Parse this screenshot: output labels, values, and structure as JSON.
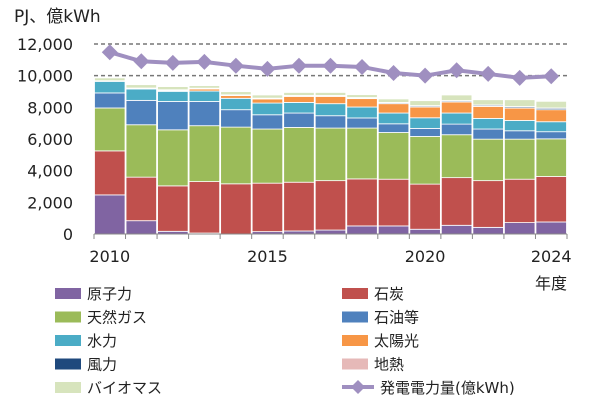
{
  "chart_data": {
    "type": "bar",
    "stacked": true,
    "ylabel": "PJ、億kWh",
    "xlabel": "年度",
    "ylim": [
      0,
      12000
    ],
    "yticks": [
      "0",
      "2,000",
      "4,000",
      "6,000",
      "8,000",
      "10,000",
      "12,000"
    ],
    "ytick_values": [
      0,
      2000,
      4000,
      6000,
      8000,
      10000,
      12000
    ],
    "gridlines": [
      10000,
      12000
    ],
    "x": [
      2010,
      2011,
      2012,
      2013,
      2014,
      2015,
      2016,
      2017,
      2018,
      2019,
      2020,
      2021,
      2022,
      2023,
      2024
    ],
    "xtick_labels": [
      "2010",
      "2015",
      "2020",
      "2024"
    ],
    "legend_placement": "bottom",
    "series": [
      {
        "name": "原子力",
        "color": "#8064a2",
        "values": [
          2470,
          840,
          170,
          60,
          0,
          150,
          190,
          250,
          510,
          510,
          300,
          550,
          420,
          720,
          760
        ]
      },
      {
        "name": "石炭",
        "color": "#c0504d",
        "values": [
          2780,
          2750,
          2870,
          3250,
          3170,
          3060,
          3080,
          3120,
          2970,
          2950,
          2850,
          3010,
          2950,
          2740,
          2870
        ]
      },
      {
        "name": "天然ガス",
        "color": "#9bbb59",
        "values": [
          2710,
          3310,
          3540,
          3530,
          3580,
          3420,
          3460,
          3320,
          3210,
          2950,
          3010,
          2710,
          2620,
          2530,
          2380
        ]
      },
      {
        "name": "石油等",
        "color": "#4f81bd",
        "values": [
          950,
          1540,
          1790,
          1530,
          1100,
          900,
          910,
          780,
          640,
          550,
          510,
          670,
          640,
          530,
          450
        ]
      },
      {
        "name": "水力",
        "color": "#4bacc6",
        "values": [
          730,
          720,
          640,
          660,
          720,
          740,
          670,
          760,
          690,
          680,
          670,
          700,
          670,
          650,
          630
        ]
      },
      {
        "name": "太陽光",
        "color": "#f79646",
        "values": [
          0,
          10,
          50,
          130,
          170,
          260,
          380,
          460,
          530,
          590,
          680,
          700,
          760,
          780,
          760
        ]
      },
      {
        "name": "風力",
        "color": "#1f497d",
        "values": [
          20,
          30,
          30,
          30,
          30,
          30,
          40,
          40,
          50,
          60,
          70,
          70,
          70,
          80,
          90
        ]
      },
      {
        "name": "地熱",
        "color": "#e6b9b8",
        "values": [
          20,
          20,
          20,
          20,
          20,
          20,
          20,
          20,
          20,
          20,
          20,
          20,
          20,
          20,
          20
        ]
      },
      {
        "name": "バイオマス",
        "color": "#d7e4bd",
        "values": [
          180,
          210,
          200,
          160,
          200,
          200,
          190,
          190,
          180,
          220,
          310,
          350,
          330,
          430,
          420
        ]
      }
    ],
    "line_series": {
      "name": "発電電力量(億kWh)",
      "color": "#9f8fc0",
      "values": [
        11480,
        10910,
        10810,
        10870,
        10630,
        10430,
        10630,
        10630,
        10550,
        10170,
        10000,
        10340,
        10110,
        9860,
        9960
      ]
    },
    "legend_order": [
      0,
      1,
      2,
      3,
      4,
      5,
      6,
      7,
      8,
      "line"
    ]
  }
}
